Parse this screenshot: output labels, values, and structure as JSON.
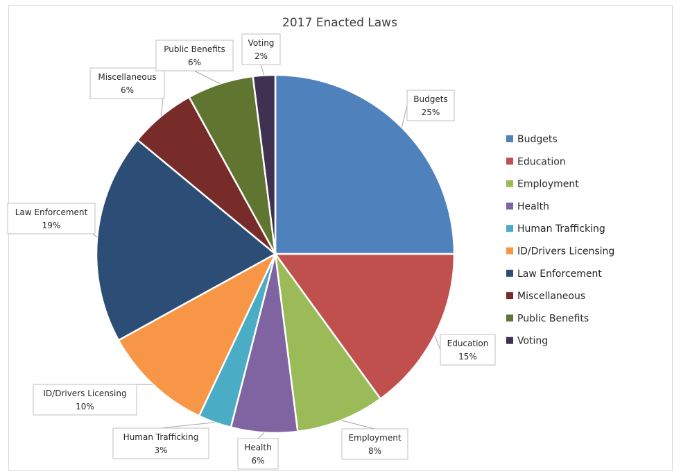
{
  "chart_data": {
    "type": "pie",
    "title": "2017 Enacted Laws",
    "categories": [
      "Budgets",
      "Education",
      "Employment",
      "Health",
      "Human Trafficking",
      "ID/Drivers Licensing",
      "Law Enforcement",
      "Miscellaneous",
      "Public Benefits",
      "Voting"
    ],
    "values": [
      25,
      15,
      8,
      6,
      3,
      10,
      19,
      6,
      6,
      2
    ],
    "percent_labels": [
      "25%",
      "15%",
      "8%",
      "6%",
      "3%",
      "10%",
      "19%",
      "6%",
      "6%",
      "2%"
    ],
    "colors": [
      "#4f81bd",
      "#c0504d",
      "#9bbb59",
      "#8064a2",
      "#4bacc6",
      "#f79646",
      "#2c4d75",
      "#772c2a",
      "#5f7530",
      "#3f3151"
    ],
    "legend_position": "right",
    "data_labels": "category and percent, callout boxes with leader lines"
  }
}
